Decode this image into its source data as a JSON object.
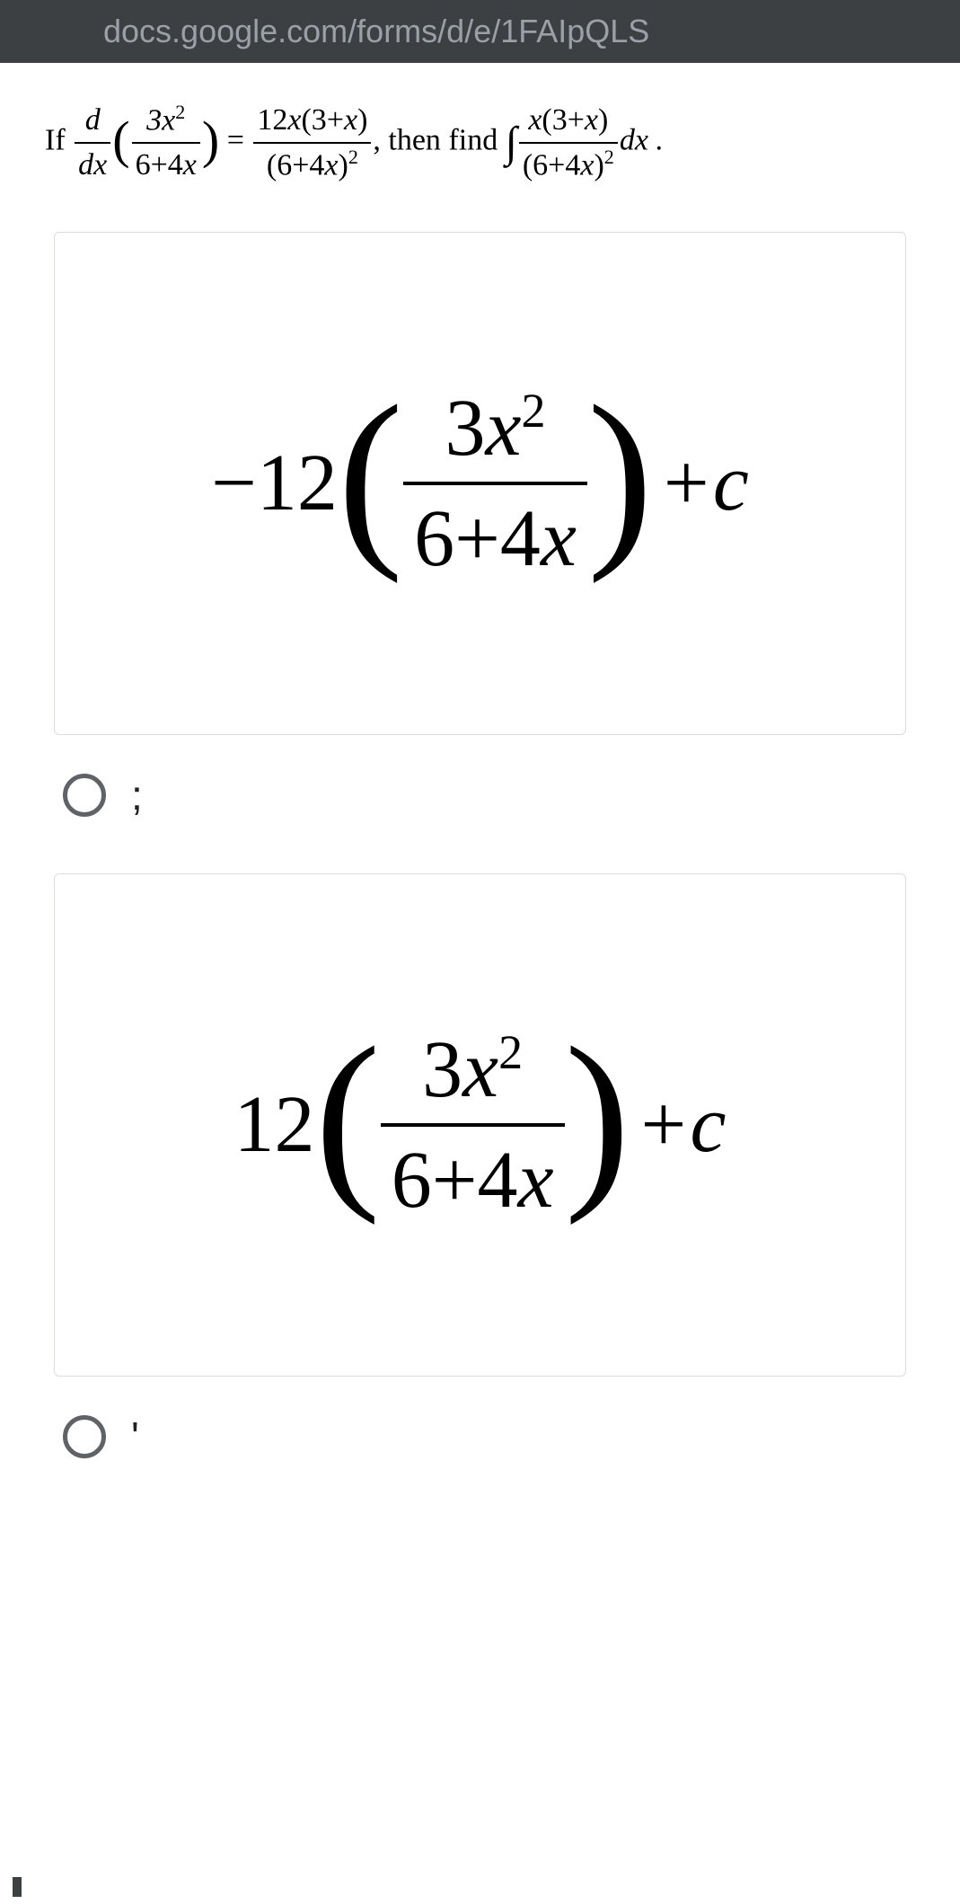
{
  "url_bar": {
    "text": "docs.google.com/forms/d/e/1FAIpQLS"
  },
  "question": {
    "prefix": "If ",
    "d_dx_num": "d",
    "d_dx_den": "dx",
    "lhs_frac_num": "3x²",
    "lhs_frac_den": "6+4x",
    "equals": "=",
    "rhs_frac_num": "12x(3+x)",
    "rhs_frac_den": "(6+4x)²",
    "mid": ", then find ",
    "integral": "∫",
    "int_frac_num": "x(3+x)",
    "int_frac_den": "(6+4x)²",
    "suffix": "dx ."
  },
  "options": [
    {
      "coef": "−12",
      "frac_num": "3x²",
      "frac_den": "6+4x",
      "tail": "+c",
      "radio_label": ";"
    },
    {
      "coef": "12",
      "frac_num": "3x²",
      "frac_den": "6+4x",
      "tail": "+c",
      "radio_label": "'"
    }
  ],
  "styling": {
    "url_bar_bg": "#3c4043",
    "url_text_color": "#9aa0a6",
    "box_border_color": "#dadce0",
    "radio_border_color": "#5f6368",
    "text_color": "#000000",
    "question_fontsize": 34,
    "option_fontsize": 90
  }
}
